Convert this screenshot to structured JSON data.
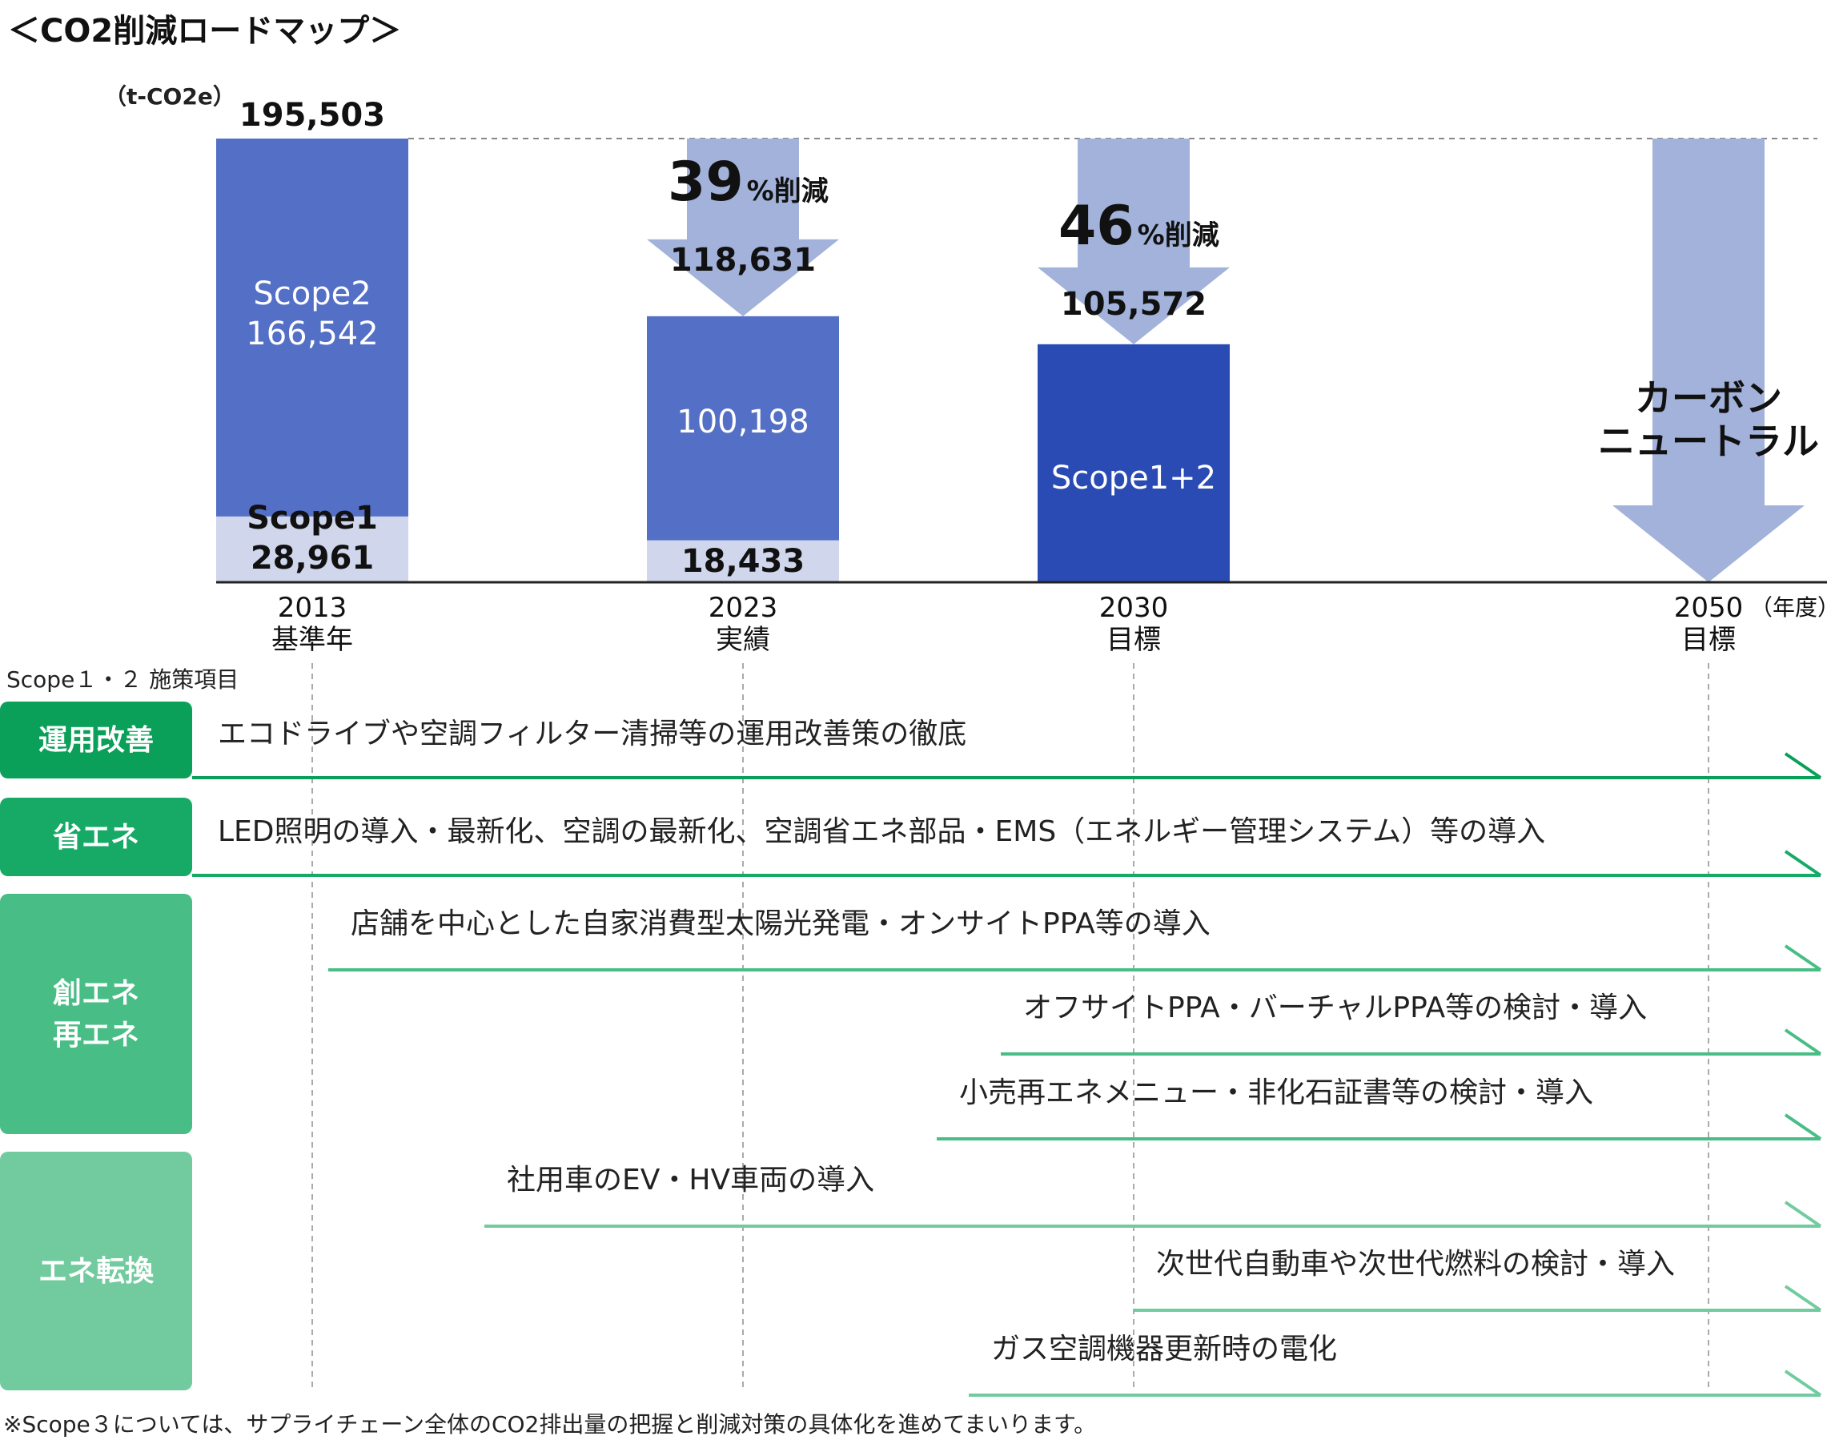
{
  "title": "＜CO2削減ロードマップ＞",
  "chart_data": {
    "type": "bar",
    "unit_label": "（t-CO2e）",
    "colors": {
      "scope2": "#5470c6",
      "scope1": "#d0d6ec",
      "target": "#2a4bb4",
      "arrow": "#a2b2da",
      "axis": "#222222",
      "baseline_dashed": "#888888"
    },
    "bars": [
      {
        "year": "2013",
        "label": "基準年",
        "total": 195503,
        "total_label": "195,503",
        "scope2": 166542,
        "scope2_label": "Scope2\n166,542",
        "scope1": 28961,
        "scope1_label": "Scope1\n28,961"
      },
      {
        "year": "2023",
        "label": "実績",
        "total": 118631,
        "total_label": "118,631",
        "scope2": 100198,
        "scope2_label": "100,198",
        "scope1": 18433,
        "scope1_label": "18,433",
        "reduction_num": "39",
        "reduction_suffix": "%削減"
      },
      {
        "year": "2030",
        "label": "目標",
        "total": 105572,
        "total_label": "105,572",
        "combined_label": "Scope1+2",
        "reduction_num": "46",
        "reduction_suffix": "%削減"
      },
      {
        "year": "2050",
        "label": "目標",
        "year_suffix": "（年度）",
        "target_text_1": "カーボン",
        "target_text_2": "ニュートラル"
      }
    ],
    "ylim": [
      0,
      195503
    ]
  },
  "section_label": "Scope１・２ 施策項目",
  "categories": [
    {
      "label_lines": [
        "運用改善"
      ],
      "color": "#0aa05a",
      "items": [
        {
          "text": "エコドライブや空調フィルター清掃等の運用改善策の徹底",
          "start_year": 2013
        }
      ]
    },
    {
      "label_lines": [
        "省エネ"
      ],
      "color": "#17aa67",
      "items": [
        {
          "text": "LED照明の導入・最新化、空調の最新化、空調省エネ部品・EMS（エネルギー管理システム）等の導入",
          "start_year": 2013
        }
      ]
    },
    {
      "label_lines": [
        "創エネ",
        "再エネ"
      ],
      "color": "#48bd85",
      "items": [
        {
          "text": "店舗を中心とした自家消費型太陽光発電・オンサイトPPA等の導入",
          "start_year": 2013
        },
        {
          "text": "オフサイトPPA・バーチャルPPA等の検討・導入",
          "start_year": 2028
        },
        {
          "text": "小売再エネメニュー・非化石証書等の検討・導入",
          "start_year": 2027
        }
      ]
    },
    {
      "label_lines": [
        "エネ転換"
      ],
      "color": "#72cb9f",
      "items": [
        {
          "text": "社用車のEV・HV車両の導入",
          "start_year": 2018
        },
        {
          "text": "次世代自動車や次世代燃料の検討・導入",
          "start_year": 2030
        },
        {
          "text": "ガス空調機器更新時の電化",
          "start_year": 2029
        }
      ]
    }
  ],
  "footnote": "※Scope３については、サプライチェーン全体のCO2排出量の把握と削減対策の具体化を進めてまいります。"
}
